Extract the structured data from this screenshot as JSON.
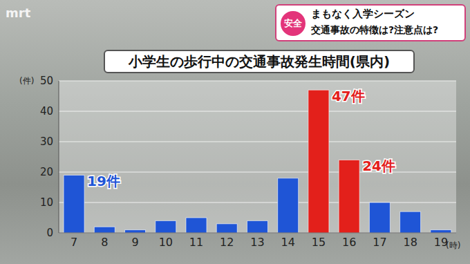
{
  "header": {
    "logo": "mrt",
    "badge": "安全",
    "headline": "まもなく入学シーズン",
    "subheadline": "交通事故の特徴は?注意点は?"
  },
  "chart_data": {
    "type": "bar",
    "title": "小学生の歩行中の交通事故発生時間(県内)",
    "y_label": "(件)",
    "x_label": "(時)",
    "categories": [
      "7",
      "8",
      "9",
      "10",
      "11",
      "12",
      "13",
      "14",
      "15",
      "16",
      "17",
      "18",
      "19"
    ],
    "values": [
      19,
      2,
      1,
      4,
      5,
      3,
      4,
      18,
      47,
      24,
      10,
      7,
      1
    ],
    "value_labels": [
      "19件",
      null,
      null,
      null,
      null,
      null,
      null,
      null,
      "47件",
      "24件",
      null,
      null,
      null
    ],
    "colors": [
      "#1f55d6",
      "#1f55d6",
      "#1f55d6",
      "#1f55d6",
      "#1f55d6",
      "#1f55d6",
      "#1f55d6",
      "#1f55d6",
      "#e3201b",
      "#e3201b",
      "#1f55d6",
      "#1f55d6",
      "#1f55d6"
    ],
    "ylim": [
      0,
      50
    ],
    "yticks": [
      0,
      10,
      20,
      30,
      40,
      50
    ],
    "grid": true
  }
}
